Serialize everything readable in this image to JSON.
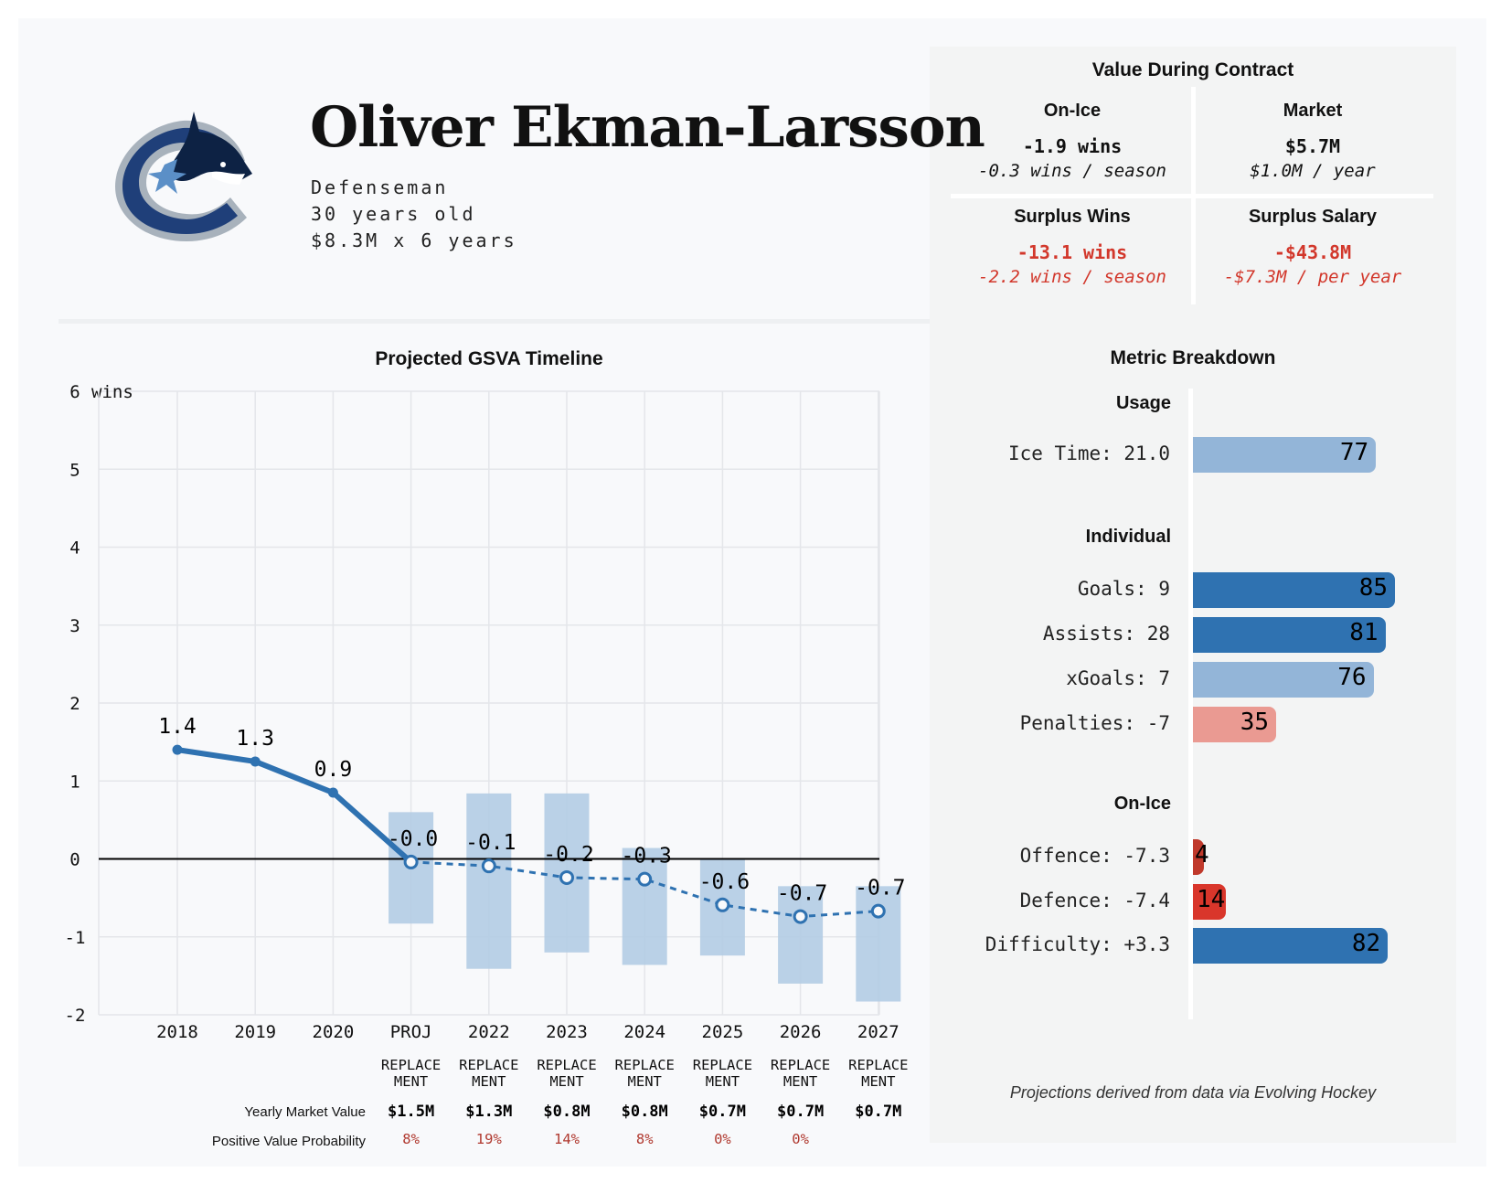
{
  "player": {
    "name": "Oliver Ekman-Larsson",
    "position": "Defenseman",
    "age": "30 years old",
    "contract": "$8.3M x 6 years"
  },
  "value_during_contract": {
    "title": "Value During Contract",
    "cells": [
      {
        "label": "On-Ice",
        "value": "-1.9 wins",
        "sub": "-0.3 wins / season",
        "negative": false
      },
      {
        "label": "Market",
        "value": "$5.7M",
        "sub": "$1.0M / year",
        "negative": false
      },
      {
        "label": "Surplus Wins",
        "value": "-13.1 wins",
        "sub": "-2.2 wins / season",
        "negative": true
      },
      {
        "label": "Surplus Salary",
        "value": "-$43.8M",
        "sub": "-$7.3M / per year",
        "negative": true
      }
    ]
  },
  "metric_breakdown": {
    "title": "Metric Breakdown",
    "groups": [
      {
        "name": "Usage",
        "metrics": [
          {
            "label": "Ice Time: 21.0",
            "value": 77,
            "color": "#93b5d8"
          }
        ]
      },
      {
        "name": "Individual",
        "metrics": [
          {
            "label": "Goals: 9",
            "value": 85,
            "color": "#2f72b1"
          },
          {
            "label": "Assists: 28",
            "value": 81,
            "color": "#2f72b1"
          },
          {
            "label": "xGoals: 7",
            "value": 76,
            "color": "#93b5d8"
          },
          {
            "label": "Penalties: -7",
            "value": 35,
            "color": "#ea9a92"
          }
        ]
      },
      {
        "name": "On-Ice",
        "metrics": [
          {
            "label": "Offence: -7.3",
            "value": 4,
            "color": "#c0392b"
          },
          {
            "label": "Defence: -7.4",
            "value": 14,
            "color": "#d9362b"
          },
          {
            "label": "Difficulty: +3.3",
            "value": 82,
            "color": "#2f72b1"
          }
        ]
      }
    ]
  },
  "footnote": "Projections derived from data via Evolving Hockey",
  "chart_data": {
    "type": "line",
    "title": "Projected GSVA Timeline",
    "ylabel": "wins",
    "ylim": [
      -2,
      6
    ],
    "yticks": [
      "-2",
      "-1",
      "0",
      "1",
      "2",
      "3",
      "4",
      "5",
      "6"
    ],
    "categories": [
      "2018",
      "2019",
      "2020",
      "PROJ",
      "2022",
      "2023",
      "2024",
      "2025",
      "2026",
      "2027"
    ],
    "historical": {
      "values": [
        1.4,
        1.25,
        0.85,
        -0.04
      ],
      "labels": [
        "1.4",
        "1.3",
        "0.9",
        "-0.0"
      ]
    },
    "projected": {
      "values": [
        -0.04,
        -0.09,
        -0.24,
        -0.26,
        -0.59,
        -0.74,
        -0.67
      ],
      "labels": [
        "-0.0",
        "-0.1",
        "-0.2",
        "-0.3",
        "-0.6",
        "-0.7",
        "-0.7"
      ],
      "ranges": [
        [
          -0.83,
          0.6
        ],
        [
          -1.41,
          0.84
        ],
        [
          -1.2,
          0.84
        ],
        [
          -1.36,
          0.14
        ],
        [
          -1.24,
          0.0
        ],
        [
          -1.6,
          -0.35
        ],
        [
          -1.83,
          -0.35
        ]
      ]
    },
    "grid": true,
    "colors": {
      "line": "#2f72b1",
      "range": "#b3cce4"
    },
    "replacement_label": [
      "REPLACE",
      "MENT"
    ],
    "market_value_label": "Yearly Market Value",
    "probability_label": "Positive Value Probability",
    "market_values": [
      "$1.5M",
      "$1.3M",
      "$0.8M",
      "$0.8M",
      "$0.7M",
      "$0.7M",
      "$0.7M"
    ],
    "probabilities": [
      "8%",
      "19%",
      "14%",
      "8%",
      "0%",
      "0%",
      ""
    ]
  }
}
